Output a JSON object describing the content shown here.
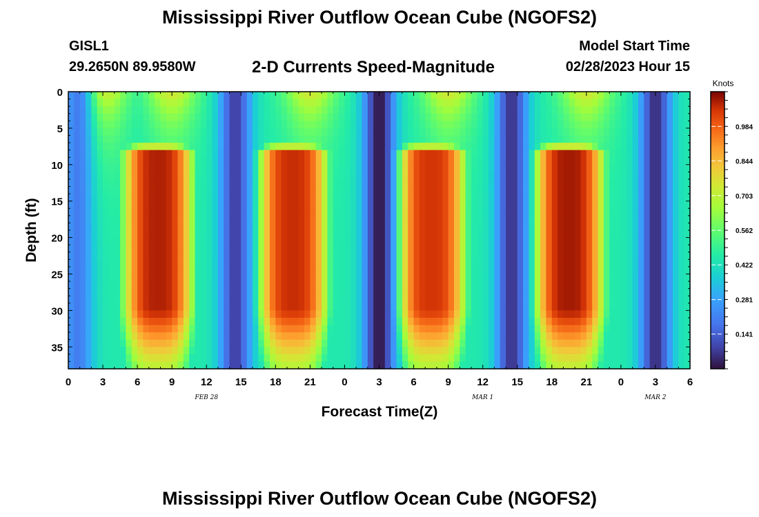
{
  "header": {
    "title": "Mississippi River Outflow Ocean Cube (NGOFS2)",
    "station": "GISL1",
    "coords": "29.2650N  89.9580W",
    "subtitle": "2-D Currents Speed-Magnitude",
    "start_label": "Model Start Time",
    "start_value": "02/28/2023 Hour 15"
  },
  "footer": {
    "title": "Mississippi River Outflow Ocean Cube (NGOFS2)"
  },
  "chart_data": {
    "type": "heatmap",
    "title": "2-D Currents Speed-Magnitude",
    "xlabel": "Forecast Time(Z)",
    "ylabel": "Depth (ft)",
    "x_range_hours": [
      0,
      54
    ],
    "y_range": [
      0,
      38
    ],
    "x_tick_hours": [
      0,
      3,
      6,
      9,
      12,
      15,
      18,
      21,
      24,
      27,
      30,
      33,
      36,
      39,
      42,
      45,
      48,
      51,
      54
    ],
    "x_tick_labels": [
      "0",
      "3",
      "6",
      "9",
      "12",
      "15",
      "18",
      "21",
      "0",
      "3",
      "6",
      "9",
      "12",
      "15",
      "18",
      "21",
      "0",
      "3",
      "6"
    ],
    "y_ticks": [
      0,
      5,
      10,
      15,
      20,
      25,
      30,
      35
    ],
    "date_labels": [
      {
        "text": "FEB 28",
        "hour": 12
      },
      {
        "text": "MAR 1",
        "hour": 36
      },
      {
        "text": "MAR 2",
        "hour": 51
      }
    ],
    "colorbar": {
      "title": "Knots",
      "min": 0.0,
      "max": 1.125,
      "ticks": [
        0.141,
        0.281,
        0.422,
        0.562,
        0.703,
        0.844,
        0.984
      ]
    },
    "peaks": [
      {
        "center_hour": 7.8,
        "max_knots": 1.08
      },
      {
        "center_hour": 19.5,
        "max_knots": 1.06
      },
      {
        "center_hour": 31.5,
        "max_knots": 1.05
      },
      {
        "center_hour": 43.5,
        "max_knots": 1.09
      }
    ],
    "troughs": [
      {
        "center_hour": 0.8,
        "min_knots": 0.2
      },
      {
        "center_hour": 14.5,
        "min_knots": 0.08
      },
      {
        "center_hour": 27.0,
        "min_knots": 0.01
      },
      {
        "center_hour": 38.5,
        "min_knots": 0.06
      },
      {
        "center_hour": 51.0,
        "min_knots": 0.05
      }
    ],
    "surface_secondary_peaks": [
      {
        "center_hour": 3.0
      },
      {
        "center_hour": 9.0
      },
      {
        "center_hour": 21.0
      },
      {
        "center_hour": 33.0
      },
      {
        "center_hour": 45.0
      }
    ]
  }
}
